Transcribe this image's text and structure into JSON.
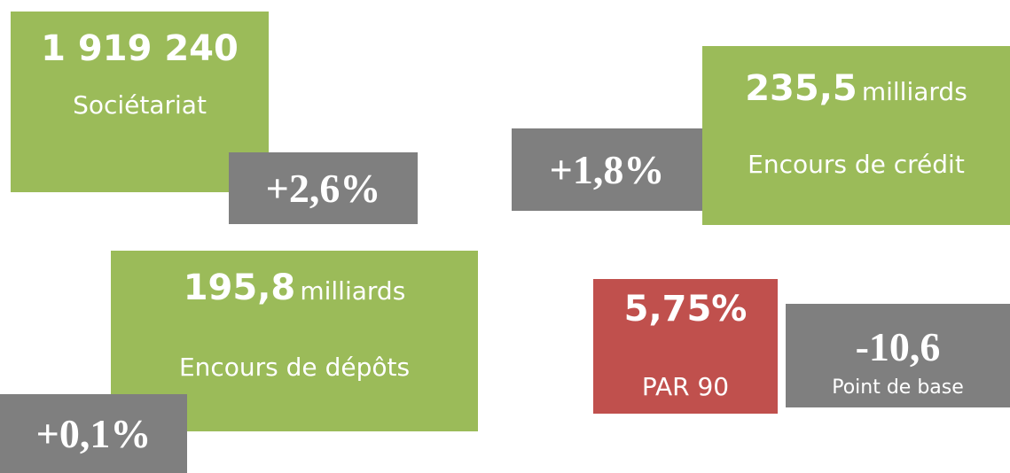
{
  "tiles": [
    {
      "value": "1 919 240",
      "label": "Sociétariat",
      "change": "+2,6%"
    },
    {
      "value": "235,5",
      "unit": "milliards",
      "label": "Encours de crédit",
      "change": "+1,8%"
    },
    {
      "value": "195,8",
      "unit": "milliards",
      "label": "Encours de dépôts",
      "change": "+0,1%"
    },
    {
      "value": "5,75%",
      "label": "PAR 90",
      "change": "-10,6",
      "change_label": "Point de base"
    }
  ]
}
